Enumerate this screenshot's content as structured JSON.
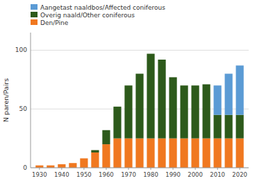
{
  "chart_data": {
    "type": "bar",
    "stacked": true,
    "x": [
      1930,
      1935,
      1940,
      1945,
      1950,
      1955,
      1960,
      1965,
      1970,
      1975,
      1980,
      1985,
      1990,
      1995,
      2000,
      2005,
      2010,
      2015,
      2020
    ],
    "series": [
      {
        "name": "Den/Pine",
        "color": "#f07820",
        "values": [
          2,
          2,
          3,
          4,
          8,
          13,
          20,
          25,
          25,
          25,
          25,
          25,
          25,
          25,
          25,
          25,
          25,
          25,
          25
        ]
      },
      {
        "name": "Overig naald/Other coniferous",
        "color": "#2d5a1b",
        "values": [
          0,
          0,
          0,
          0,
          0,
          2,
          12,
          27,
          45,
          55,
          72,
          67,
          52,
          45,
          45,
          46,
          20,
          20,
          20
        ]
      },
      {
        "name": "Aangetast naaldbos/Affected coniferous",
        "color": "#5b9bd5",
        "values": [
          0,
          0,
          0,
          0,
          0,
          0,
          0,
          0,
          0,
          0,
          0,
          0,
          0,
          0,
          0,
          0,
          25,
          35,
          42
        ]
      }
    ],
    "ylabel": "N paren/Pairs",
    "xlim": [
      1926,
      2024
    ],
    "ylim": [
      0,
      115
    ],
    "xticks": [
      1930,
      1940,
      1950,
      1960,
      1970,
      1980,
      1990,
      2000,
      2010,
      2020
    ],
    "yticks": [
      0,
      50,
      100
    ],
    "grid": true,
    "legend": "upper left"
  }
}
